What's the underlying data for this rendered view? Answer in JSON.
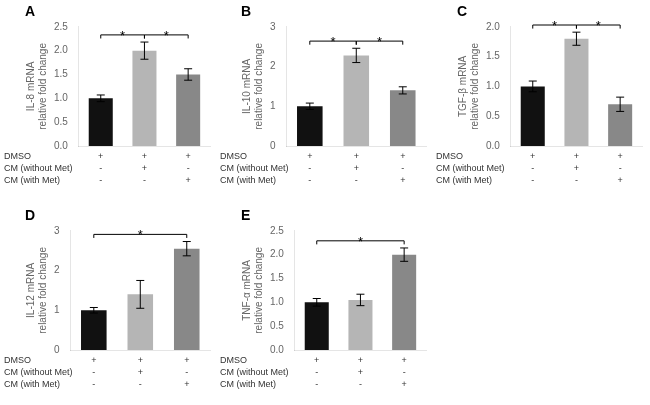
{
  "chart_data": [
    {
      "type": "bar",
      "title": "A",
      "y_label": "IL-8 mRNA\nrelative fold change",
      "categories": [
        null,
        null,
        null
      ],
      "values": [
        1.0,
        2.0,
        1.5
      ],
      "errors": [
        0.07,
        0.18,
        0.12
      ],
      "colors": [
        "#111111",
        "#b5b5b5",
        "#888888"
      ],
      "ylim": [
        0,
        2.5
      ],
      "yticks": [
        {
          "value": 0,
          "label": "0.0"
        },
        0.5,
        {
          "value": 1,
          "label": "1.0"
        },
        1.5,
        {
          "value": 2,
          "label": "2.0"
        },
        2.5
      ],
      "grid": false,
      "tick_labels": "y",
      "annotations": [
        {
          "text": "*",
          "from": 0,
          "to": 1
        },
        {
          "text": "*",
          "from": 1,
          "to": 2
        }
      ],
      "table": [
        {
          "label": "DMSO",
          "signs": [
            "+",
            "+",
            "+"
          ]
        },
        {
          "label": "CM (without Met)",
          "signs": [
            "-",
            "+",
            "-"
          ]
        },
        {
          "label": "CM (with Met)",
          "signs": [
            "-",
            "-",
            "+"
          ]
        }
      ]
    },
    {
      "type": "bar",
      "title": "B",
      "y_label": "IL-10 mRNA\nrelative fold change",
      "categories": [
        null,
        null,
        null
      ],
      "values": [
        1.0,
        2.28,
        1.4
      ],
      "errors": [
        0.08,
        0.18,
        0.09
      ],
      "colors": [
        "#111111",
        "#b5b5b5",
        "#888888"
      ],
      "ylim": [
        0,
        3.0
      ],
      "yticks": [
        0,
        1,
        2,
        3
      ],
      "grid": false,
      "tick_labels": "y",
      "annotations": [
        {
          "text": "*",
          "from": 0,
          "to": 1
        },
        {
          "text": "*",
          "from": 1,
          "to": 2
        }
      ],
      "table": [
        {
          "label": "DMSO",
          "signs": [
            "+",
            "+",
            "+"
          ]
        },
        {
          "label": "CM (without Met)",
          "signs": [
            "-",
            "+",
            "-"
          ]
        },
        {
          "label": "CM (with Met)",
          "signs": [
            "-",
            "-",
            "+"
          ]
        }
      ]
    },
    {
      "type": "bar",
      "title": "C",
      "y_label": "TGF-β mRNA\nrelative fold change",
      "categories": [
        null,
        null,
        null
      ],
      "values": [
        1.0,
        1.8,
        0.7
      ],
      "errors": [
        0.09,
        0.11,
        0.12
      ],
      "colors": [
        "#111111",
        "#b5b5b5",
        "#888888"
      ],
      "ylim": [
        0,
        2.0
      ],
      "yticks": [
        {
          "value": 0,
          "label": "0.0"
        },
        0.5,
        {
          "value": 1,
          "label": "1.0"
        },
        1.5,
        {
          "value": 2,
          "label": "2.0"
        }
      ],
      "grid": false,
      "tick_labels": "y",
      "annotations": [
        {
          "text": "*",
          "from": 0,
          "to": 1
        },
        {
          "text": "*",
          "from": 1,
          "to": 2
        }
      ],
      "table": [
        {
          "label": "DMSO",
          "signs": [
            "+",
            "+",
            "+"
          ]
        },
        {
          "label": "CM (without Met)",
          "signs": [
            "-",
            "+",
            "-"
          ]
        },
        {
          "label": "CM (with Met)",
          "signs": [
            "-",
            "-",
            "+"
          ]
        }
      ]
    },
    {
      "type": "bar",
      "title": "D",
      "y_label": "IL-12 mRNA\nrelative fold change",
      "categories": [
        null,
        null,
        null
      ],
      "values": [
        1.0,
        1.4,
        2.55
      ],
      "errors": [
        0.07,
        0.35,
        0.18
      ],
      "colors": [
        "#111111",
        "#b5b5b5",
        "#888888"
      ],
      "ylim": [
        0,
        3.0
      ],
      "yticks": [
        0,
        1,
        2,
        3
      ],
      "grid": false,
      "tick_labels": "y",
      "annotations": [
        {
          "text": "*",
          "from": 0,
          "to": 2
        }
      ],
      "table": [
        {
          "label": "DMSO",
          "signs": [
            "+",
            "+",
            "+"
          ]
        },
        {
          "label": "CM (without Met)",
          "signs": [
            "-",
            "+",
            "-"
          ]
        },
        {
          "label": "CM (with Met)",
          "signs": [
            "-",
            "-",
            "+"
          ]
        }
      ]
    },
    {
      "type": "bar",
      "title": "E",
      "y_label": "TNF-α mRNA\nrelative fold change",
      "categories": [
        null,
        null,
        null
      ],
      "values": [
        1.0,
        1.05,
        2.0
      ],
      "errors": [
        0.08,
        0.12,
        0.14
      ],
      "colors": [
        "#111111",
        "#b5b5b5",
        "#888888"
      ],
      "ylim": [
        0,
        2.5
      ],
      "yticks": [
        {
          "value": 0,
          "label": "0.0"
        },
        0.5,
        {
          "value": 1,
          "label": "1.0"
        },
        1.5,
        {
          "value": 2,
          "label": "2.0"
        },
        2.5
      ],
      "grid": false,
      "tick_labels": "y",
      "annotations": [
        {
          "text": "*",
          "from": 0,
          "to": 2
        }
      ],
      "table": [
        {
          "label": "DMSO",
          "signs": [
            "+",
            "+",
            "+"
          ]
        },
        {
          "label": "CM (without Met)",
          "signs": [
            "-",
            "+",
            "-"
          ]
        },
        {
          "label": "CM (with Met)",
          "signs": [
            "-",
            "-",
            "+"
          ]
        }
      ]
    }
  ]
}
